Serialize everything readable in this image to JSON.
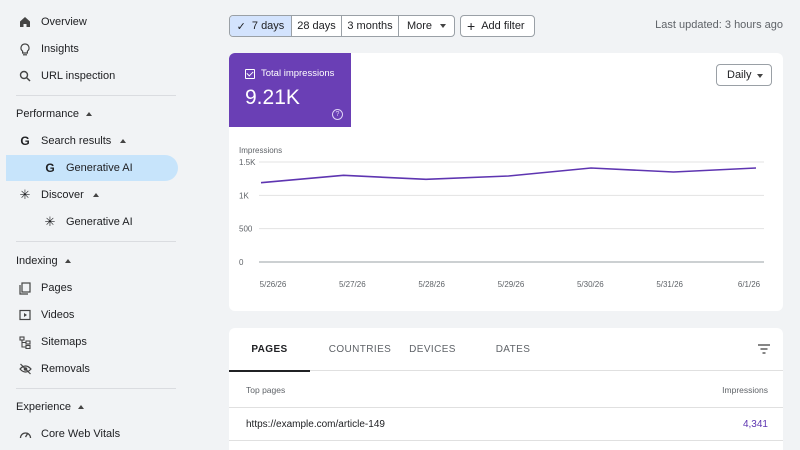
{
  "sidebar": {
    "top_items": [
      {
        "label": "Overview",
        "icon": "home-icon"
      },
      {
        "label": "Insights",
        "icon": "lightbulb-icon"
      },
      {
        "label": "URL inspection",
        "icon": "search-icon"
      }
    ],
    "performance": {
      "title": "Performance",
      "search_results": {
        "label": "Search results",
        "icon": "google-g-icon"
      },
      "search_generative": {
        "label": "Generative AI",
        "icon": "google-g-icon"
      },
      "discover": {
        "label": "Discover",
        "icon": "sparkle-icon"
      },
      "discover_generative": {
        "label": "Generative AI",
        "icon": "sparkle-icon"
      }
    },
    "indexing": {
      "title": "Indexing",
      "items": [
        {
          "label": "Pages",
          "icon": "pages-icon"
        },
        {
          "label": "Videos",
          "icon": "video-icon"
        },
        {
          "label": "Sitemaps",
          "icon": "sitemap-icon"
        },
        {
          "label": "Removals",
          "icon": "removals-icon"
        }
      ]
    },
    "experience": {
      "title": "Experience",
      "items": [
        {
          "label": "Core Web Vitals",
          "icon": "gauge-icon"
        }
      ]
    }
  },
  "toolbar": {
    "date_ranges": [
      "7 days",
      "28 days",
      "3 months",
      "More"
    ],
    "selected_range": "7 days",
    "add_filter_label": "Add filter",
    "last_updated": "Last updated: 3 hours ago"
  },
  "metric": {
    "label": "Total impressions",
    "value": "9.21K",
    "help": "?",
    "color": "#6a3fb5"
  },
  "granularity": "Daily",
  "chart_data": {
    "type": "line",
    "ylabel": "Impressions",
    "x": [
      "5/26/26",
      "5/27/26",
      "5/28/26",
      "5/29/26",
      "5/30/26",
      "5/31/26",
      "6/1/26"
    ],
    "series": [
      {
        "values": [
          1190,
          1300,
          1240,
          1290,
          1410,
          1350,
          1410
        ],
        "color": "#5e35b1"
      }
    ],
    "ylim": [
      0,
      1500
    ],
    "yticks": [
      0,
      500,
      1000,
      1500
    ],
    "ytick_labels": [
      "0",
      "500",
      "1K",
      "1.5K"
    ],
    "grid": true
  },
  "table": {
    "tabs": [
      "PAGES",
      "COUNTRIES",
      "DEVICES",
      "DATES"
    ],
    "active_tab": "PAGES",
    "columns": [
      "Top pages",
      "Impressions"
    ],
    "rows": [
      {
        "page": "https://example.com/article-149",
        "impressions": "4,341"
      }
    ]
  }
}
